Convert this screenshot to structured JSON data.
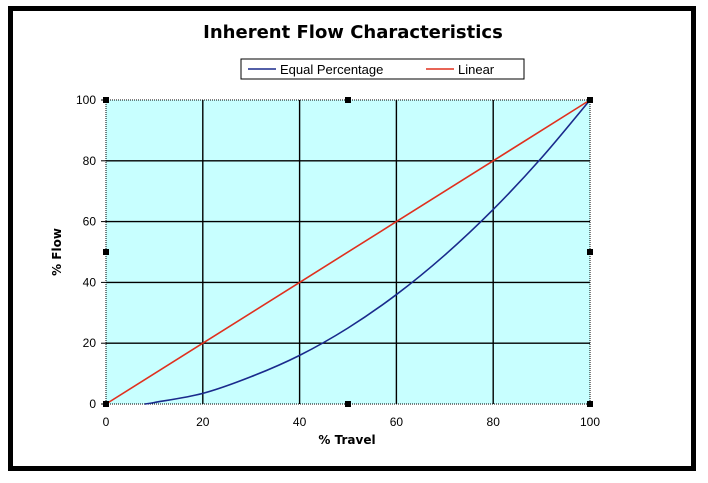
{
  "chart_data": {
    "type": "line",
    "title": "Inherent Flow Characteristics",
    "xlabel": "% Travel",
    "ylabel": "% Flow",
    "xlim": [
      0,
      100
    ],
    "ylim": [
      0,
      100
    ],
    "xticks": [
      "0",
      "20",
      "40",
      "60",
      "80",
      "100"
    ],
    "yticks": [
      "0",
      "20",
      "40",
      "60",
      "80",
      "100"
    ],
    "grid": true,
    "legend": "top",
    "plot_background": "#c8ffff",
    "series": [
      {
        "name": "Equal Percentage",
        "color": "#1a2a8c",
        "x": [
          8,
          10,
          20,
          30,
          40,
          50,
          60,
          70,
          80,
          90,
          100
        ],
        "y": [
          0,
          0.5,
          3.5,
          9,
          16,
          25,
          36,
          49,
          64,
          81,
          100
        ]
      },
      {
        "name": "Linear",
        "color": "#e0301e",
        "x": [
          0,
          20,
          40,
          60,
          80,
          100
        ],
        "y": [
          0,
          20,
          40,
          60,
          80,
          100
        ]
      }
    ]
  }
}
